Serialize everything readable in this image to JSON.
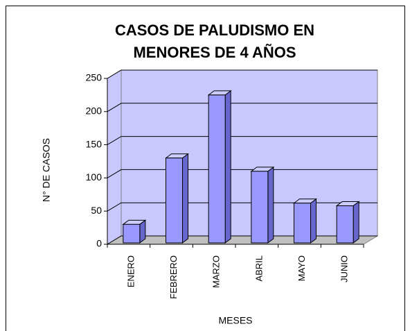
{
  "chart_data": {
    "type": "bar3d",
    "title": [
      "CASOS DE PALUDISMO EN",
      "MENORES DE 4 AÑOS"
    ],
    "x_label": "MESES",
    "y_label": "N° DE CASOS",
    "categories": [
      "ENERO",
      "FEBRERO",
      "MARZO",
      "ABRIL",
      "MAYO",
      "JUNIO"
    ],
    "values": [
      30,
      130,
      225,
      110,
      62,
      58
    ],
    "color": "#9999ff",
    "ylim": [
      0,
      250
    ],
    "yticks": [
      0,
      50,
      100,
      150,
      200,
      250
    ],
    "grid": true
  }
}
